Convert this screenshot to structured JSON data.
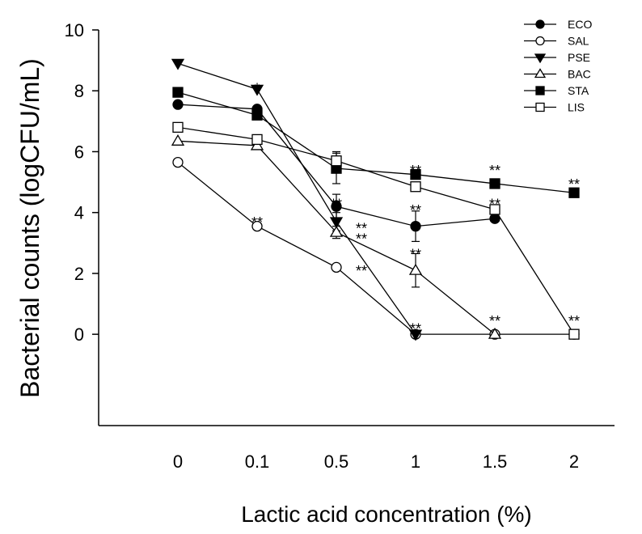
{
  "chart_data": {
    "type": "line",
    "title": "",
    "xlabel": "Lactic acid concentration (%)",
    "ylabel": "Bacterial counts (logCFU/mL)",
    "categories": [
      "0",
      "0.1",
      "0.5",
      "1",
      "1.5",
      "2"
    ],
    "ylim": [
      -3,
      10
    ],
    "yticks": [
      0,
      2,
      4,
      6,
      8,
      10
    ],
    "grid": false,
    "legend_position": "top-right",
    "series": [
      {
        "name": "ECO",
        "marker": "circle-filled",
        "values": [
          7.55,
          7.4,
          4.2,
          3.55,
          3.8,
          null
        ],
        "errors": [
          0,
          0.1,
          0.4,
          0.5,
          0.1,
          0
        ]
      },
      {
        "name": "SAL",
        "marker": "circle-open",
        "values": [
          5.65,
          3.55,
          2.2,
          0,
          0,
          0
        ],
        "errors": [
          0,
          0.05,
          0.1,
          0,
          0,
          0
        ]
      },
      {
        "name": "PSE",
        "marker": "triangle-down-filled",
        "values": [
          8.9,
          8.05,
          3.7,
          0,
          null,
          null
        ],
        "errors": [
          0,
          0.05,
          0.3,
          0,
          0,
          0
        ]
      },
      {
        "name": "BAC",
        "marker": "triangle-up-open",
        "values": [
          6.35,
          6.2,
          3.35,
          2.1,
          0,
          null
        ],
        "errors": [
          0,
          0.1,
          0.2,
          0.55,
          0,
          0
        ]
      },
      {
        "name": "STA",
        "marker": "square-filled",
        "values": [
          7.95,
          7.2,
          5.45,
          5.25,
          4.95,
          4.65
        ],
        "errors": [
          0,
          0.1,
          0.5,
          0.1,
          0.05,
          0.05
        ]
      },
      {
        "name": "LIS",
        "marker": "square-open",
        "values": [
          6.8,
          6.4,
          5.7,
          4.85,
          4.1,
          0
        ],
        "errors": [
          0,
          0.05,
          0.3,
          0.1,
          0.1,
          0
        ]
      }
    ],
    "annotations": [
      {
        "x": "0.1",
        "y": 8.1,
        "text": "*"
      },
      {
        "x": "0.1",
        "y": 3.7,
        "text": "**"
      },
      {
        "x": "0.5",
        "y": 4.3,
        "text": "**"
      },
      {
        "x": "0.5",
        "y": 3.5,
        "text": "**"
      },
      {
        "x": "0.5",
        "y": 3.15,
        "text": "**"
      },
      {
        "x": "0.5",
        "y": 2.1,
        "text": "**"
      },
      {
        "x": "1",
        "y": 5.4,
        "text": "**"
      },
      {
        "x": "1",
        "y": 4.1,
        "text": "**"
      },
      {
        "x": "1",
        "y": 2.65,
        "text": "**"
      },
      {
        "x": "1",
        "y": 0.2,
        "text": "**"
      },
      {
        "x": "1.5",
        "y": 5.4,
        "text": "**"
      },
      {
        "x": "1.5",
        "y": 4.3,
        "text": "**"
      },
      {
        "x": "1.5",
        "y": 0.45,
        "text": "**"
      },
      {
        "x": "2",
        "y": 4.95,
        "text": "**"
      },
      {
        "x": "2",
        "y": 0.45,
        "text": "**"
      }
    ]
  }
}
